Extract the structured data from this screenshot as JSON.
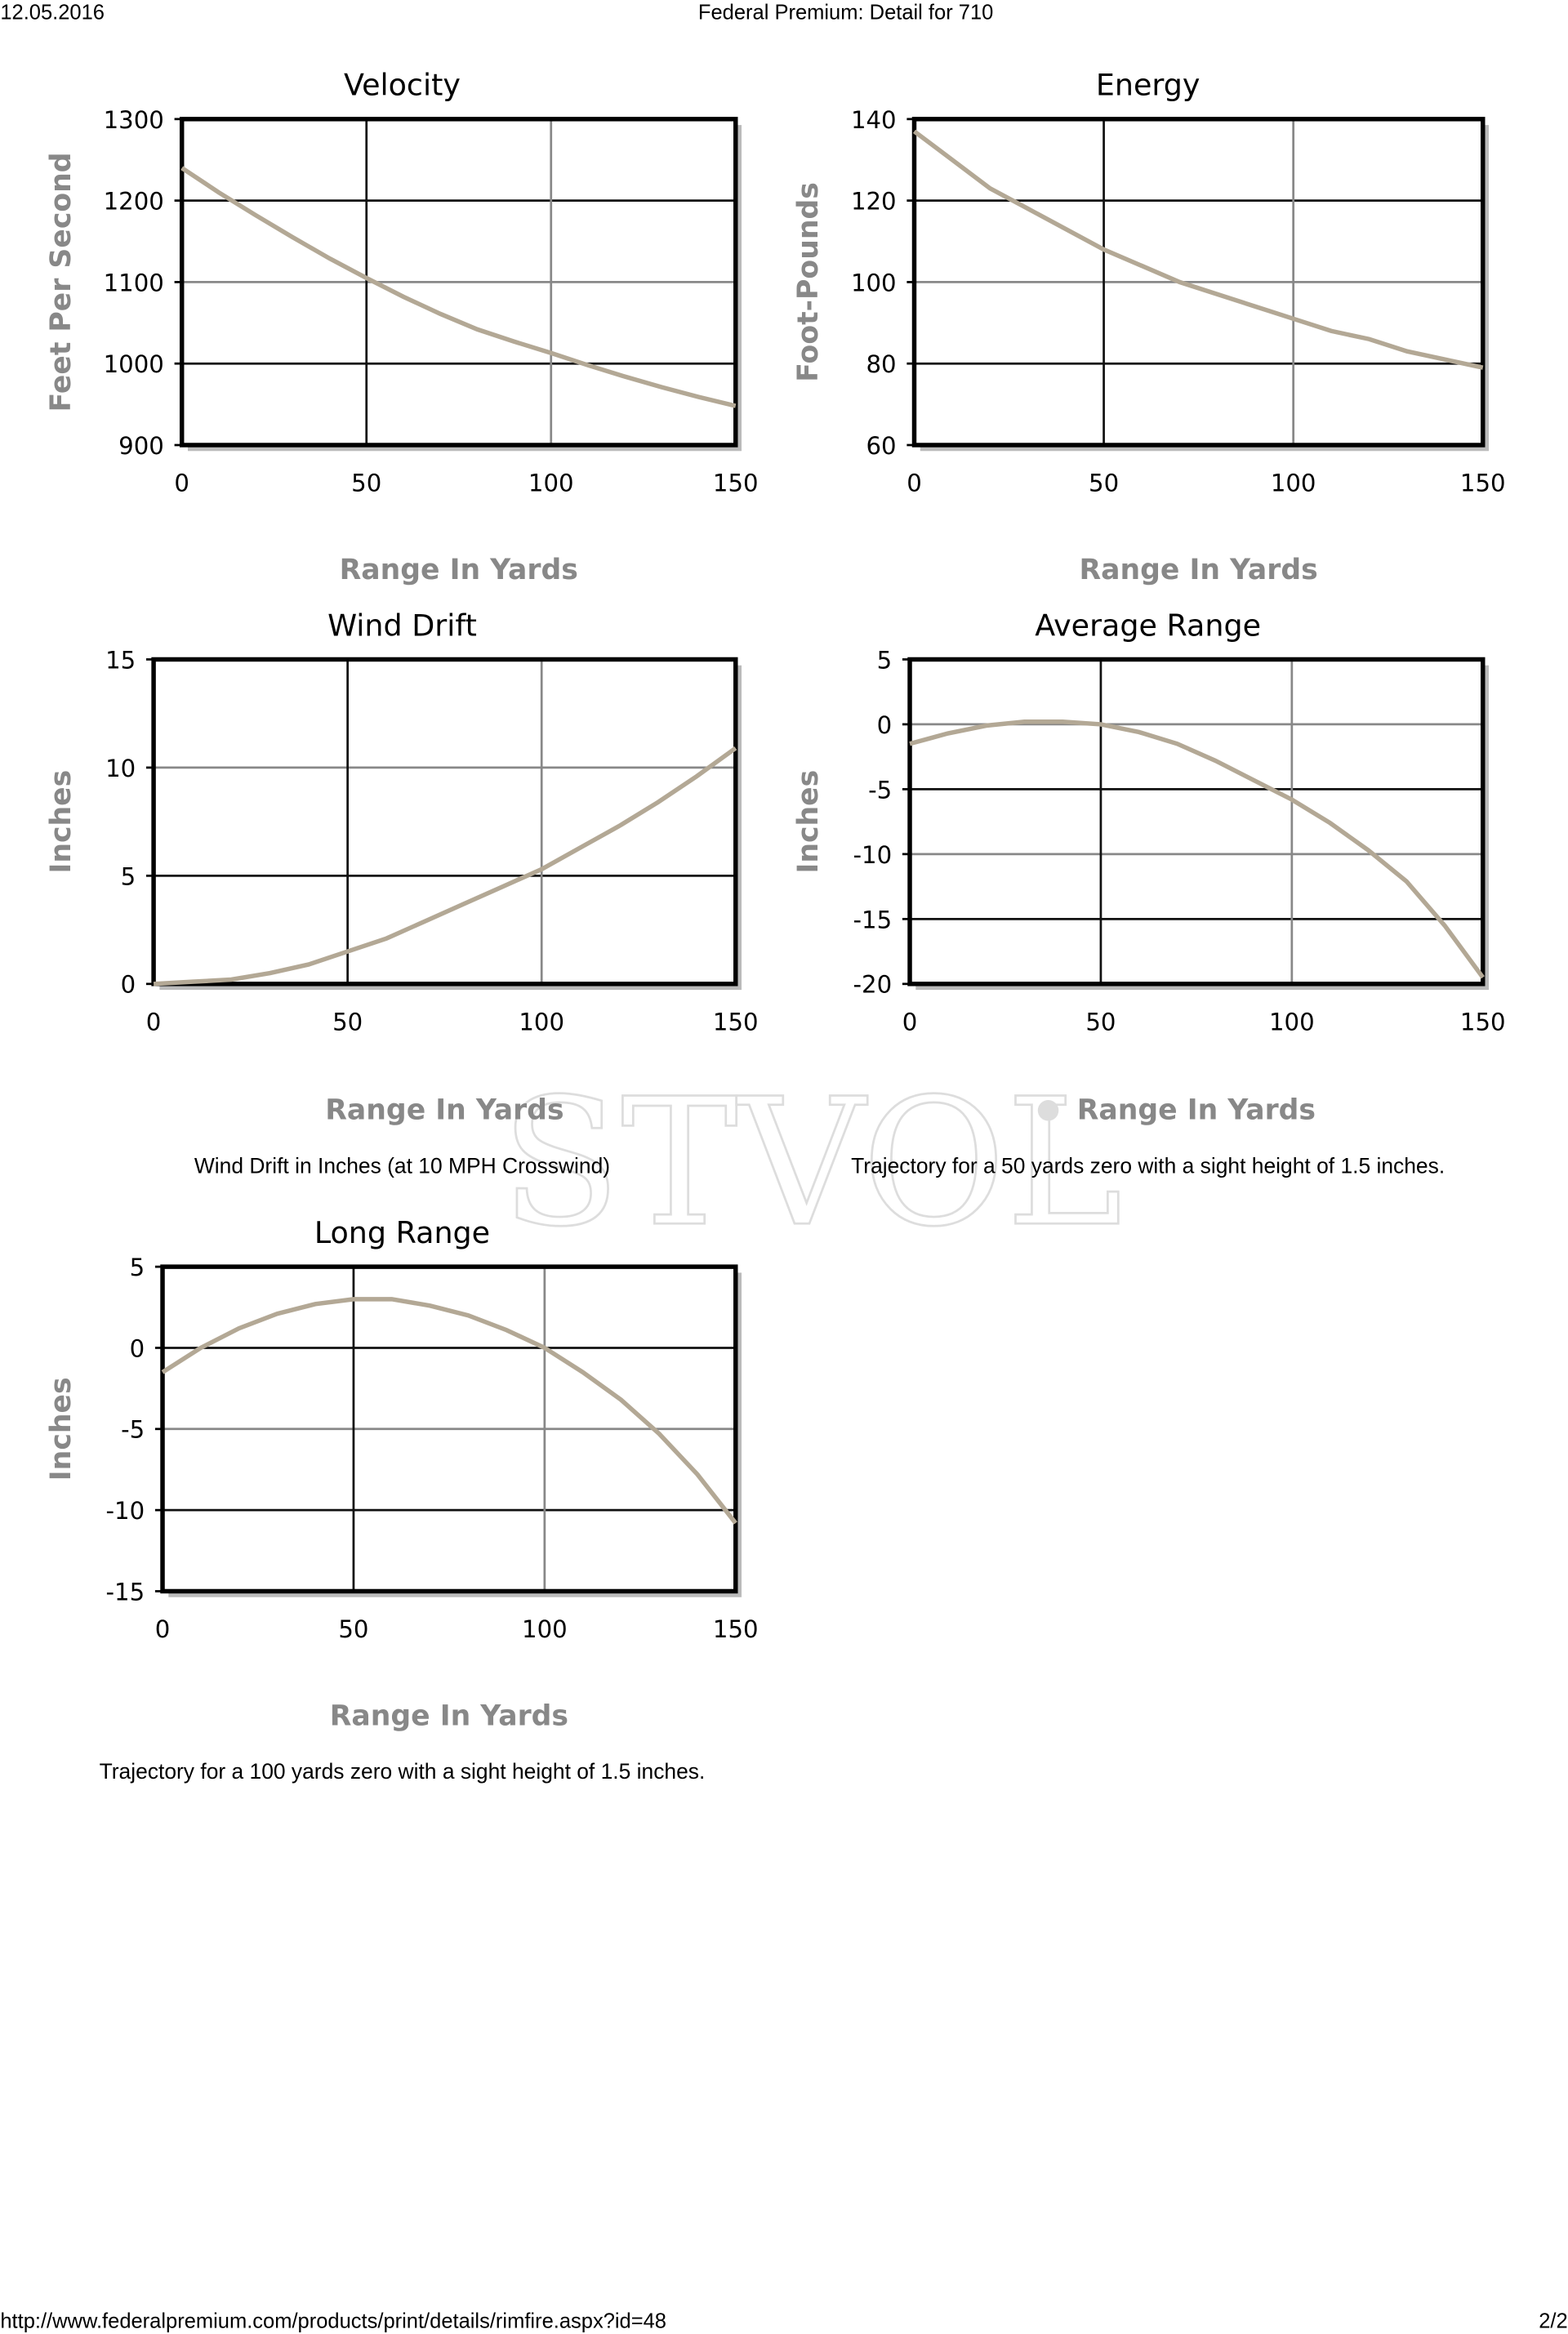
{
  "header": {
    "date": "12.05.2016",
    "title": "Federal Premium: Detail for 710"
  },
  "footer": {
    "url": "http://www.federalpremium.com/products/print/details/rimfire.aspx?id=48",
    "page": "2/2"
  },
  "watermark": "STVOL",
  "chart_data": [
    {
      "type": "line",
      "title": "Velocity",
      "xlabel": "Range In Yards",
      "ylabel": "Feet Per Second",
      "x": [
        0,
        10,
        20,
        30,
        40,
        50,
        60,
        70,
        80,
        90,
        100,
        110,
        120,
        130,
        140,
        150
      ],
      "values": [
        1240,
        1210,
        1182,
        1155,
        1129,
        1105,
        1082,
        1061,
        1042,
        1027,
        1013,
        998,
        984,
        971,
        959,
        948
      ],
      "color": "#b3a895",
      "xlim": [
        0,
        150
      ],
      "xticks": [
        0,
        50,
        100,
        150
      ],
      "ylim": [
        900,
        1300
      ],
      "yticks": [
        900,
        1000,
        1100,
        1200,
        1300
      ],
      "grid": true
    },
    {
      "type": "line",
      "title": "Energy",
      "xlabel": "Range In Yards",
      "ylabel": "Foot-Pounds",
      "x": [
        0,
        10,
        20,
        30,
        40,
        50,
        60,
        70,
        80,
        90,
        100,
        110,
        120,
        130,
        140,
        150
      ],
      "values": [
        137,
        130,
        123,
        118,
        113,
        108,
        104,
        100,
        97,
        94,
        91,
        88,
        86,
        83,
        81,
        79
      ],
      "color": "#b3a895",
      "xlim": [
        0,
        150
      ],
      "xticks": [
        0,
        50,
        100,
        150
      ],
      "ylim": [
        60,
        140
      ],
      "yticks": [
        60,
        80,
        100,
        120,
        140
      ],
      "grid": true
    },
    {
      "type": "line",
      "title": "Wind Drift",
      "xlabel": "Range In Yards",
      "ylabel": "Inches",
      "caption": "Wind Drift in Inches (at 10 MPH Crosswind)",
      "x": [
        0,
        10,
        20,
        30,
        40,
        50,
        60,
        70,
        80,
        90,
        100,
        110,
        120,
        130,
        140,
        150
      ],
      "values": [
        0,
        0.1,
        0.2,
        0.5,
        0.9,
        1.5,
        2.1,
        2.9,
        3.7,
        4.5,
        5.3,
        6.3,
        7.3,
        8.4,
        9.6,
        10.9
      ],
      "color": "#b3a895",
      "xlim": [
        0,
        150
      ],
      "xticks": [
        0,
        50,
        100,
        150
      ],
      "ylim": [
        0,
        15
      ],
      "yticks": [
        0,
        5,
        10,
        15
      ],
      "grid": true
    },
    {
      "type": "line",
      "title": "Average Range",
      "xlabel": "Range In Yards",
      "ylabel": "Inches",
      "caption": "Trajectory for a 50 yards zero with a sight height of 1.5 inches.",
      "x": [
        0,
        10,
        20,
        30,
        40,
        50,
        60,
        70,
        80,
        90,
        100,
        110,
        120,
        130,
        140,
        150
      ],
      "values": [
        -1.5,
        -0.7,
        -0.1,
        0.2,
        0.2,
        0,
        -0.6,
        -1.5,
        -2.8,
        -4.3,
        -5.8,
        -7.6,
        -9.7,
        -12.1,
        -15.5,
        -19.5
      ],
      "color": "#b3a895",
      "xlim": [
        0,
        150
      ],
      "xticks": [
        0,
        50,
        100,
        150
      ],
      "ylim": [
        -20,
        5
      ],
      "yticks": [
        -20,
        -15,
        -10,
        -5,
        0,
        5
      ],
      "grid": true
    },
    {
      "type": "line",
      "title": "Long Range",
      "xlabel": "Range In Yards",
      "ylabel": "Inches",
      "caption": "Trajectory for a 100 yards zero with a sight height of 1.5 inches.",
      "x": [
        0,
        10,
        20,
        30,
        40,
        50,
        60,
        70,
        80,
        90,
        100,
        110,
        120,
        130,
        140,
        150
      ],
      "values": [
        -1.5,
        0,
        1.2,
        2.1,
        2.7,
        3.0,
        3.0,
        2.6,
        2.0,
        1.1,
        0,
        -1.5,
        -3.2,
        -5.3,
        -7.8,
        -10.8
      ],
      "color": "#b3a895",
      "xlim": [
        0,
        150
      ],
      "xticks": [
        0,
        50,
        100,
        150
      ],
      "ylim": [
        -15,
        5
      ],
      "yticks": [
        -15,
        -10,
        -5,
        0,
        5
      ],
      "grid": true
    }
  ]
}
